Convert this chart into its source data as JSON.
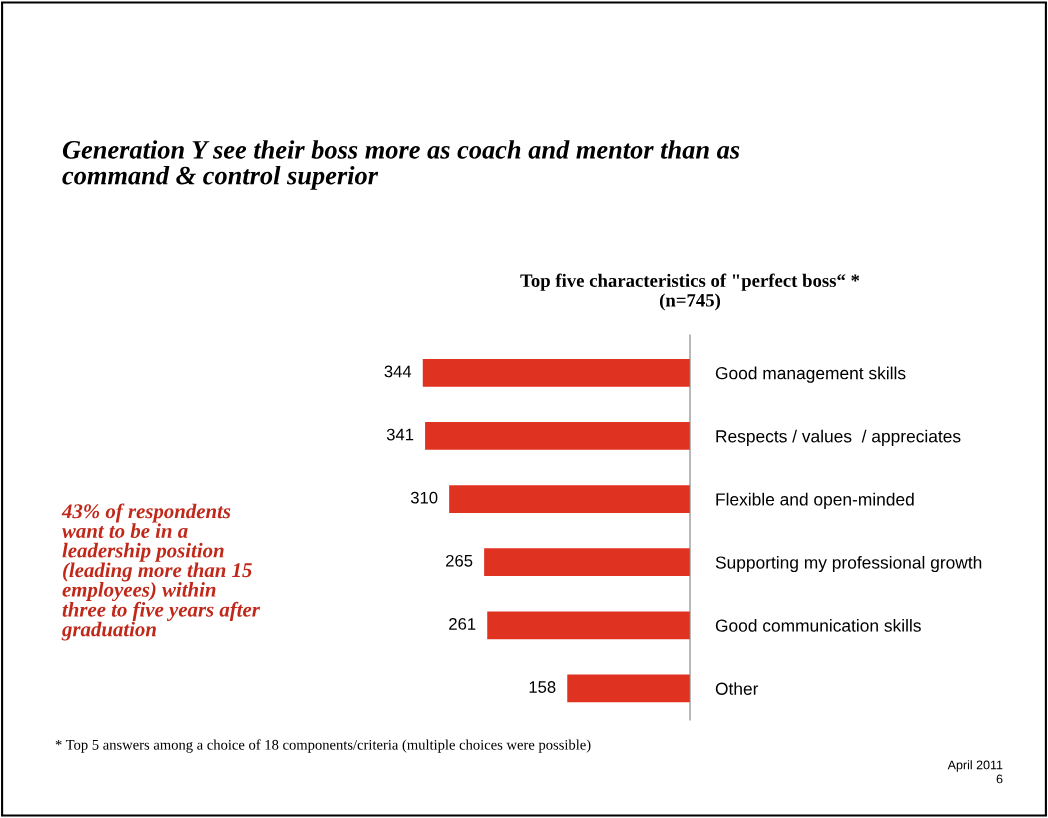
{
  "chart_data": {
    "type": "bar",
    "orientation": "horizontal",
    "title": "Top five characteristics of \"perfect boss“ *\n(n=745)",
    "subtitle": "Generation Y see their boss more as coach and mentor than as\ncommand & control superior",
    "categories": [
      "Good management skills",
      "Respects / values  / appreciates",
      "Flexible and open-minded",
      "Supporting my professional growth",
      "Good communication skills",
      "Other"
    ],
    "values": [
      344,
      341,
      310,
      265,
      261,
      158
    ],
    "color": "#e03220",
    "data_labels": true,
    "tick_labels": "y",
    "grid": false,
    "annotations": [
      "43% of respondents\nwant to be in a\nleadership position\n(leading more than 15\nemployees) within\nthree to five years after\ngraduation",
      "* Top 5 answers among a choice of 18 components/criteria (multiple choices were possible)",
      "April 2011",
      "6"
    ]
  }
}
